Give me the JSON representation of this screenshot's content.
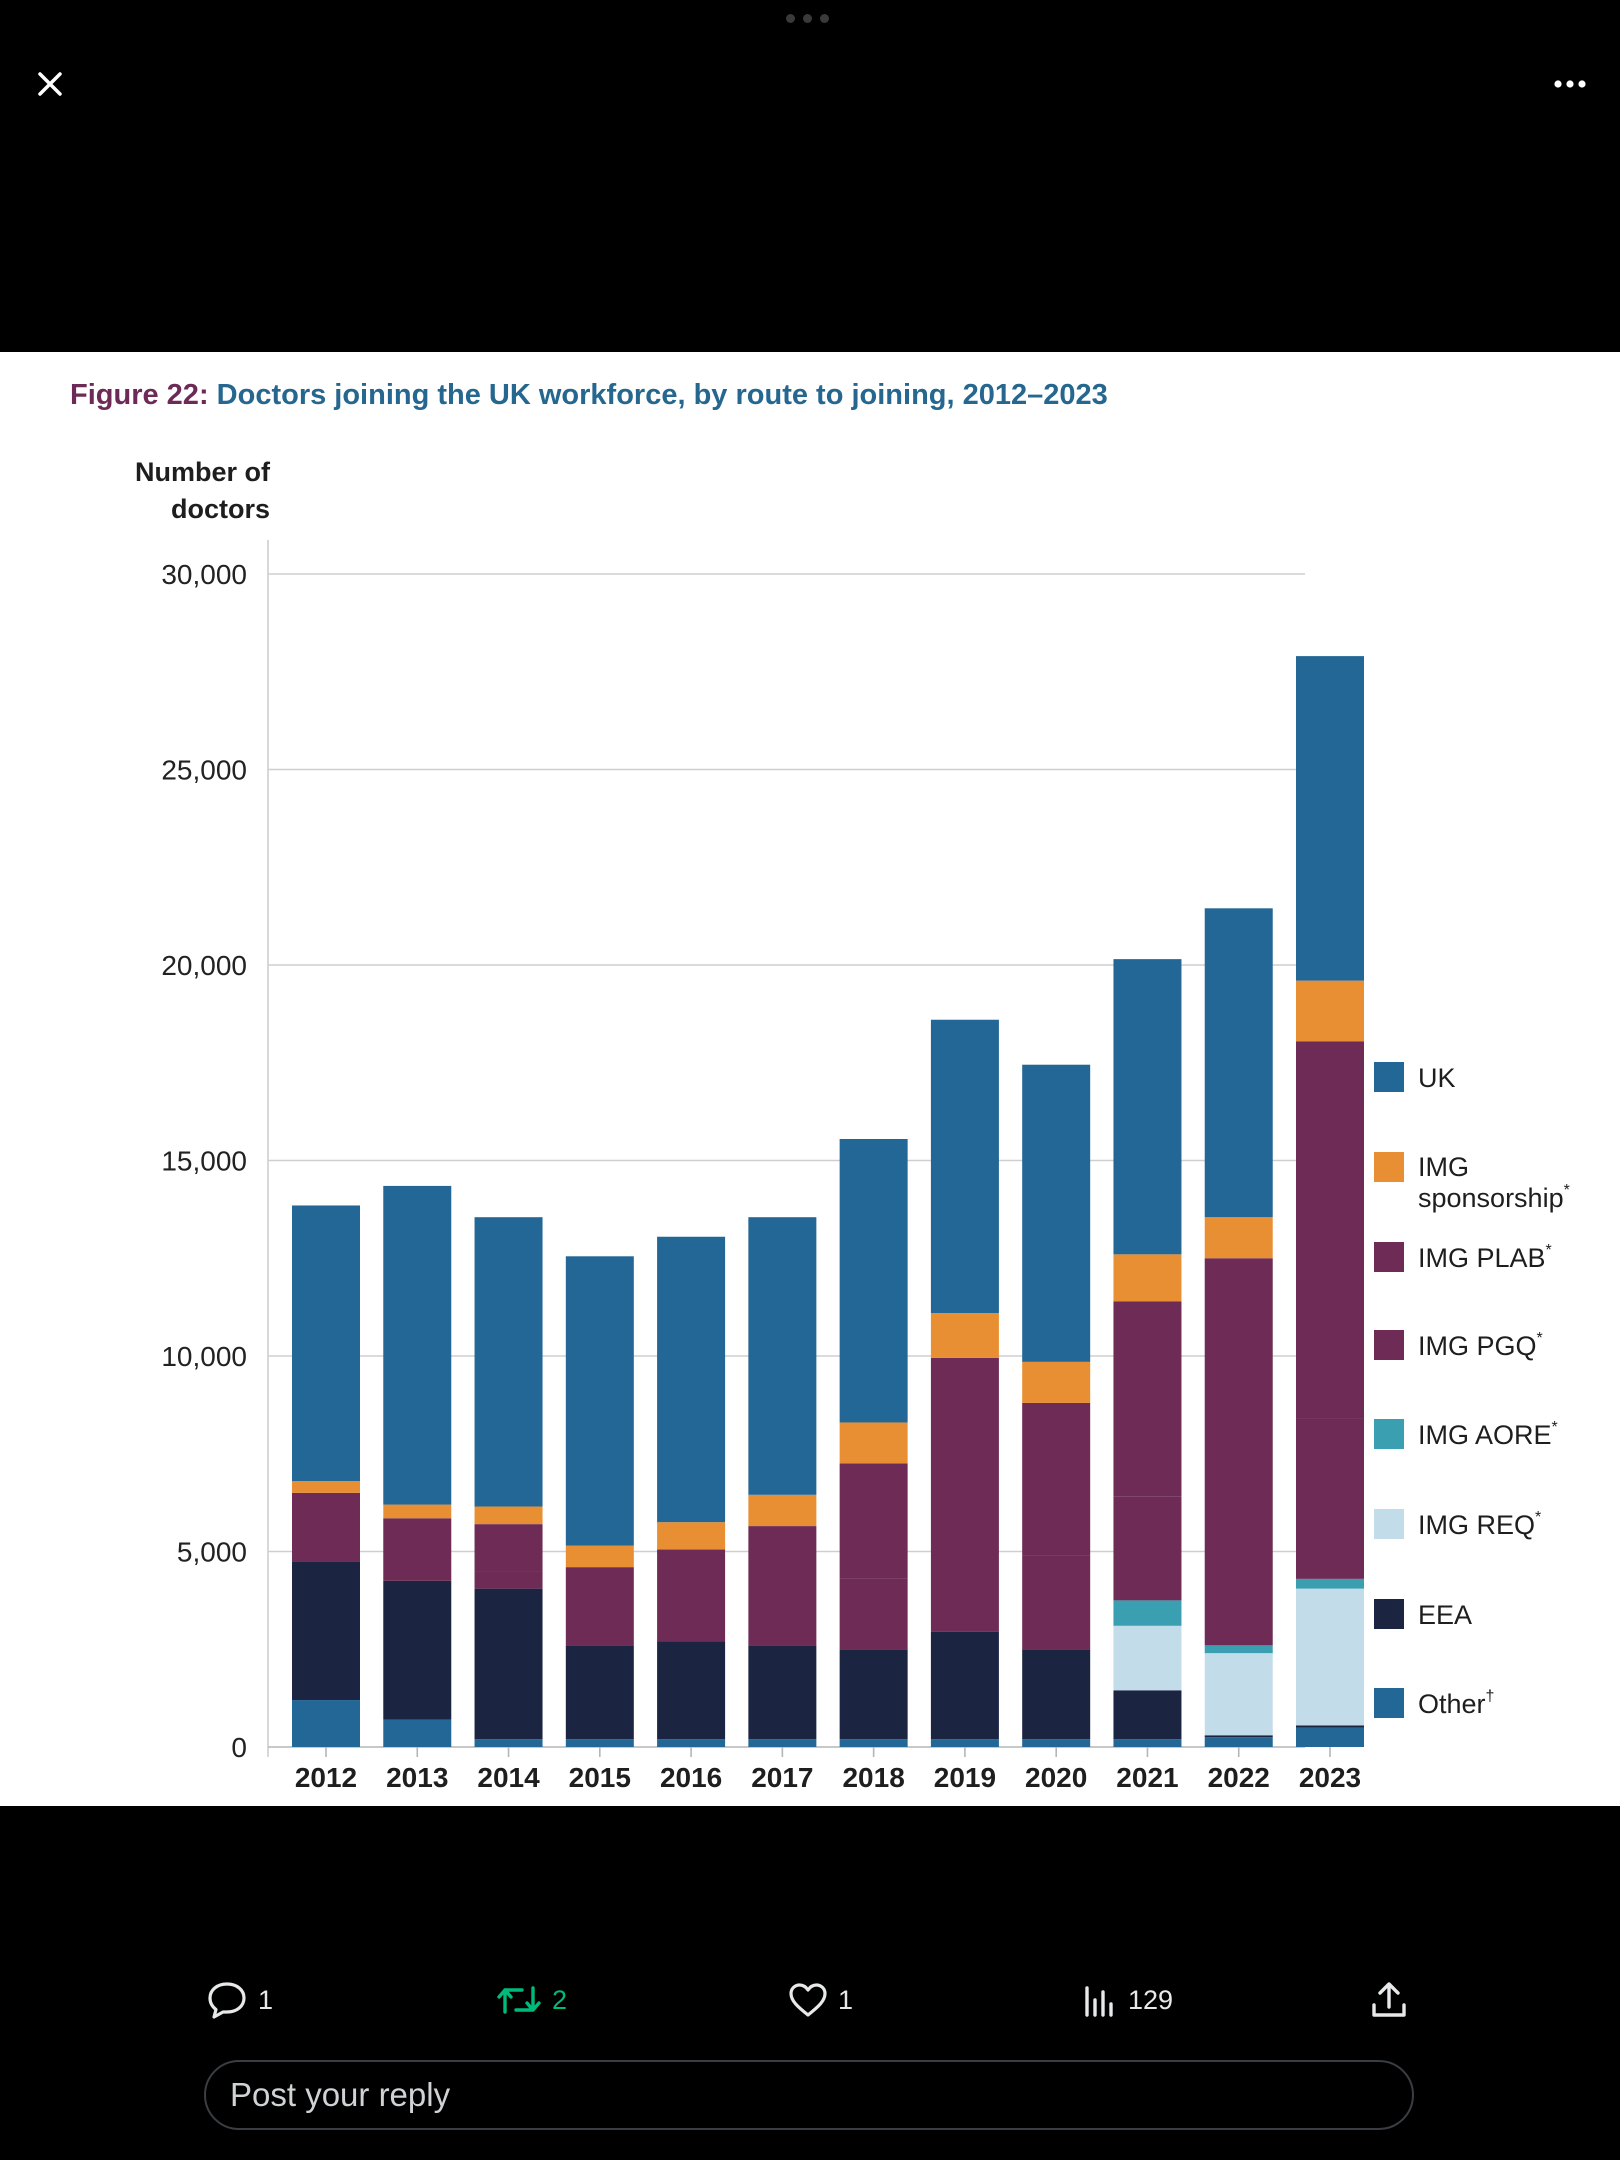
{
  "top_bar": {
    "close_icon": "close-icon",
    "more_icon": "more-horizontal-icon"
  },
  "figure": {
    "label": "Figure 22",
    "separator": ": ",
    "title": "Doctors joining the UK workforce, by route to joining, 2012–2023"
  },
  "chart_data": {
    "type": "bar",
    "stacked": true,
    "title": "Doctors joining the UK workforce, by route to joining, 2012–2023",
    "ylabel_lines": [
      "Number of",
      "doctors"
    ],
    "ylim": [
      0,
      30000
    ],
    "yticks": [
      0,
      5000,
      10000,
      15000,
      20000,
      25000,
      30000
    ],
    "ytick_labels": [
      "0",
      "5,000",
      "10,000",
      "15,000",
      "20,000",
      "25,000",
      "30,000"
    ],
    "grid": true,
    "legend_position": "right",
    "categories": [
      "2012",
      "2013",
      "2014",
      "2015",
      "2016",
      "2017",
      "2018",
      "2019",
      "2020",
      "2021",
      "2022",
      "2023"
    ],
    "series": [
      {
        "name": "Other",
        "marker": "†",
        "color": "#236796",
        "values": [
          1200,
          700,
          200,
          200,
          200,
          200,
          200,
          200,
          200,
          200,
          250,
          500
        ]
      },
      {
        "name": "EEA",
        "marker": "",
        "color": "#1b2542",
        "values": [
          3550,
          3550,
          3850,
          2400,
          2500,
          2400,
          2300,
          2750,
          2300,
          1250,
          50,
          50
        ]
      },
      {
        "name": "IMG REQ",
        "marker": "*",
        "color": "#c2dcea",
        "values": [
          0,
          0,
          0,
          0,
          0,
          0,
          0,
          0,
          0,
          1650,
          2100,
          3500
        ]
      },
      {
        "name": "IMG AORE",
        "marker": "*",
        "color": "#3a9fb1",
        "values": [
          0,
          0,
          0,
          0,
          0,
          0,
          0,
          0,
          0,
          650,
          200,
          250
        ]
      },
      {
        "name": "IMG PGQ",
        "marker": "*",
        "color": "#6d2b55",
        "values": [
          0,
          0,
          450,
          0,
          0,
          0,
          1800,
          0,
          2400,
          2650,
          0,
          4100
        ]
      },
      {
        "name": "IMG PLAB",
        "marker": "*",
        "color": "#6d2b55",
        "values": [
          1750,
          1600,
          1200,
          2000,
          2350,
          3050,
          2950,
          7000,
          3900,
          5000,
          9900,
          9650
        ]
      },
      {
        "name": "IMG sponsorship",
        "marker": "*",
        "color": "#e98f33",
        "values": [
          300,
          350,
          450,
          550,
          700,
          800,
          1050,
          1150,
          1050,
          1200,
          1050,
          1550
        ]
      },
      {
        "name": "UK",
        "marker": "",
        "color": "#236796",
        "values": [
          7050,
          8150,
          7400,
          7400,
          7300,
          7100,
          7250,
          7500,
          7600,
          7550,
          7900,
          8300
        ]
      }
    ],
    "legend": [
      {
        "name": "UK",
        "lines": [
          "UK"
        ],
        "marker": "",
        "color": "#236796"
      },
      {
        "name": "IMG sponsorship",
        "lines": [
          "IMG",
          "sponsorship"
        ],
        "marker": "*",
        "color": "#e98f33"
      },
      {
        "name": "IMG PLAB",
        "lines": [
          "IMG PLAB"
        ],
        "marker": "*",
        "color": "#6d2b55"
      },
      {
        "name": "IMG PGQ",
        "lines": [
          "IMG PGQ"
        ],
        "marker": "*",
        "color": "#6d2b55"
      },
      {
        "name": "IMG AORE",
        "lines": [
          "IMG AORE"
        ],
        "marker": "*",
        "color": "#3a9fb1"
      },
      {
        "name": "IMG REQ",
        "lines": [
          "IMG REQ"
        ],
        "marker": "*",
        "color": "#c2dcea"
      },
      {
        "name": "EEA",
        "lines": [
          "EEA"
        ],
        "marker": "",
        "color": "#1b2542"
      },
      {
        "name": "Other",
        "lines": [
          "Other"
        ],
        "marker": "†",
        "color": "#236796"
      }
    ]
  },
  "actions": {
    "reply_count": "1",
    "retweet_count": "2",
    "like_count": "1",
    "view_count": "129",
    "retweet_color": "#00ba7c"
  },
  "reply": {
    "placeholder": "Post your reply"
  }
}
